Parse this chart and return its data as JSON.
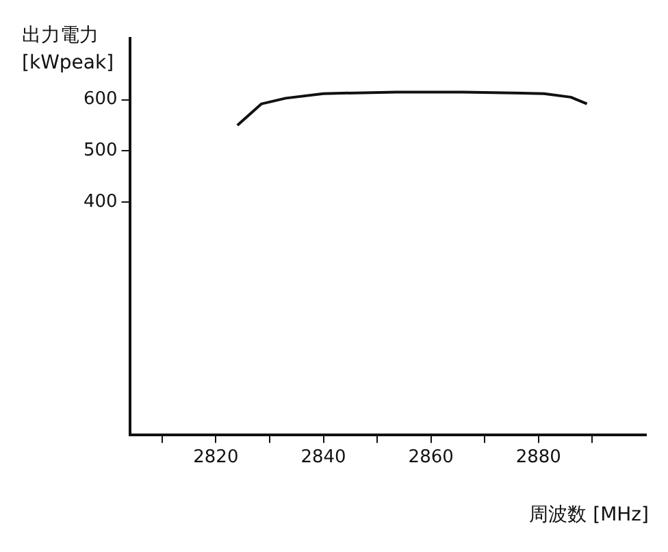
{
  "chart_data": {
    "type": "line",
    "xlabel": "周波数 [MHz]",
    "ylabel": "出力電力 [kWpeak]",
    "x": [
      2824,
      2828.5,
      2833,
      2840,
      2853.5,
      2866,
      2881,
      2886,
      2889
    ],
    "series": [
      {
        "color": "#111111",
        "values": [
          550,
          592,
          603,
          612,
          615,
          615,
          612,
          605,
          592
        ]
      }
    ],
    "xlim": [
      2804,
      2900
    ],
    "xticks": [
      {
        "value": 2810,
        "label": null
      },
      {
        "value": 2820,
        "label": "2820"
      },
      {
        "value": 2830,
        "label": null
      },
      {
        "value": 2840,
        "label": "2840"
      },
      {
        "value": 2850,
        "label": null
      },
      {
        "value": 2860,
        "label": "2860"
      },
      {
        "value": 2870,
        "label": null
      },
      {
        "value": 2880,
        "label": "2880"
      },
      {
        "value": 2890,
        "label": null
      }
    ],
    "ylim": [
      -55,
      720
    ],
    "yticks": [
      400,
      500,
      600
    ],
    "grid": false,
    "legend": false,
    "marker": "none",
    "line_style": "solid"
  }
}
